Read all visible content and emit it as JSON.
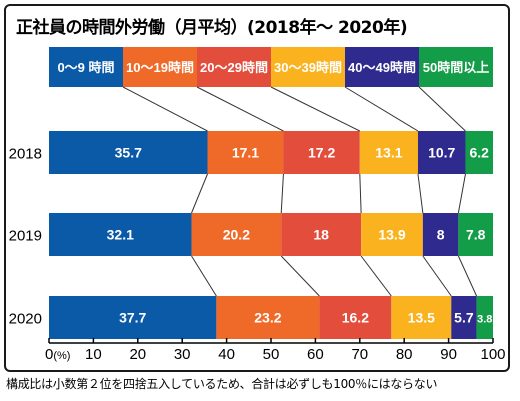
{
  "title": "正社員の時間外労働（月平均）(2018年～ 2020年)",
  "note": "構成比は小数第２位を四捨五入しているため、合計は必ずしも100％にはならない",
  "chart_data": {
    "type": "bar",
    "orientation": "horizontal",
    "stacked": true,
    "categories": [
      "2018",
      "2019",
      "2020"
    ],
    "series": [
      {
        "name": "0～9 時間",
        "color": "#0b5aa8",
        "values": [
          35.7,
          32.1,
          37.7
        ],
        "labels": [
          "35.7",
          "32.1",
          "37.7"
        ]
      },
      {
        "name": "10～19時間",
        "color": "#ef6a28",
        "values": [
          17.1,
          20.2,
          23.2
        ],
        "labels": [
          "17.1",
          "20.2",
          "23.2"
        ]
      },
      {
        "name": "20～29時間",
        "color": "#e24d3c",
        "values": [
          17.2,
          18,
          16.2
        ],
        "labels": [
          "17.2",
          "18",
          "16.2"
        ]
      },
      {
        "name": "30～39時間",
        "color": "#fab21e",
        "values": [
          13.1,
          13.9,
          13.5
        ],
        "labels": [
          "13.1",
          "13.9",
          "13.5"
        ]
      },
      {
        "name": "40～49時間",
        "color": "#2e2a8e",
        "values": [
          10.7,
          8,
          5.7
        ],
        "labels": [
          "10.7",
          "8",
          "5.7"
        ]
      },
      {
        "name": "50時間以上",
        "color": "#139d48",
        "values": [
          6.2,
          7.8,
          3.8
        ],
        "labels": [
          "6.2",
          "7.8",
          "3.8"
        ]
      }
    ],
    "xlim": [
      0,
      100
    ],
    "xticks": [
      "0",
      "10",
      "20",
      "30",
      "40",
      "50",
      "60",
      "70",
      "80",
      "90",
      "100"
    ],
    "x_unit": "(%)",
    "legend": "top"
  }
}
